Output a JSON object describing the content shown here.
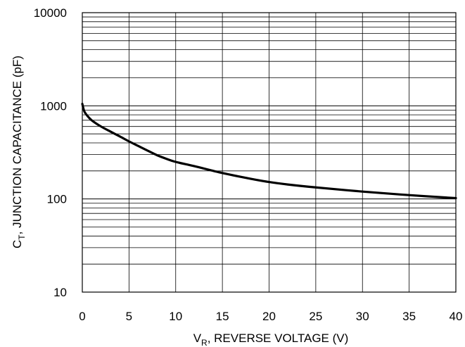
{
  "chart_data": {
    "type": "line",
    "xlabel": {
      "main": "V",
      "sub": "R",
      "rest": ", REVERSE VOLTAGE (V)"
    },
    "ylabel": {
      "main": "C",
      "sub": "T",
      "rest": ", JUNCTION CAPACITANCE (pF)"
    },
    "x_ticks": [
      "0",
      "5",
      "10",
      "15",
      "20",
      "25",
      "30",
      "35",
      "40"
    ],
    "y_ticks": [
      "10",
      "100",
      "1000",
      "10000"
    ],
    "xlim": [
      0,
      40
    ],
    "ylim": [
      10,
      10000
    ],
    "y_scale": "log",
    "grid": true,
    "series": [
      {
        "color": "#000000",
        "x": [
          0,
          0.2,
          0.5,
          1,
          2,
          3,
          4,
          5,
          6,
          7,
          8,
          9,
          10,
          12,
          15,
          18,
          20,
          22,
          25,
          30,
          35,
          40
        ],
        "y": [
          1050,
          880,
          790,
          700,
          600,
          530,
          470,
          415,
          370,
          330,
          295,
          270,
          250,
          225,
          190,
          165,
          152,
          143,
          133,
          120,
          110,
          102
        ]
      }
    ]
  }
}
